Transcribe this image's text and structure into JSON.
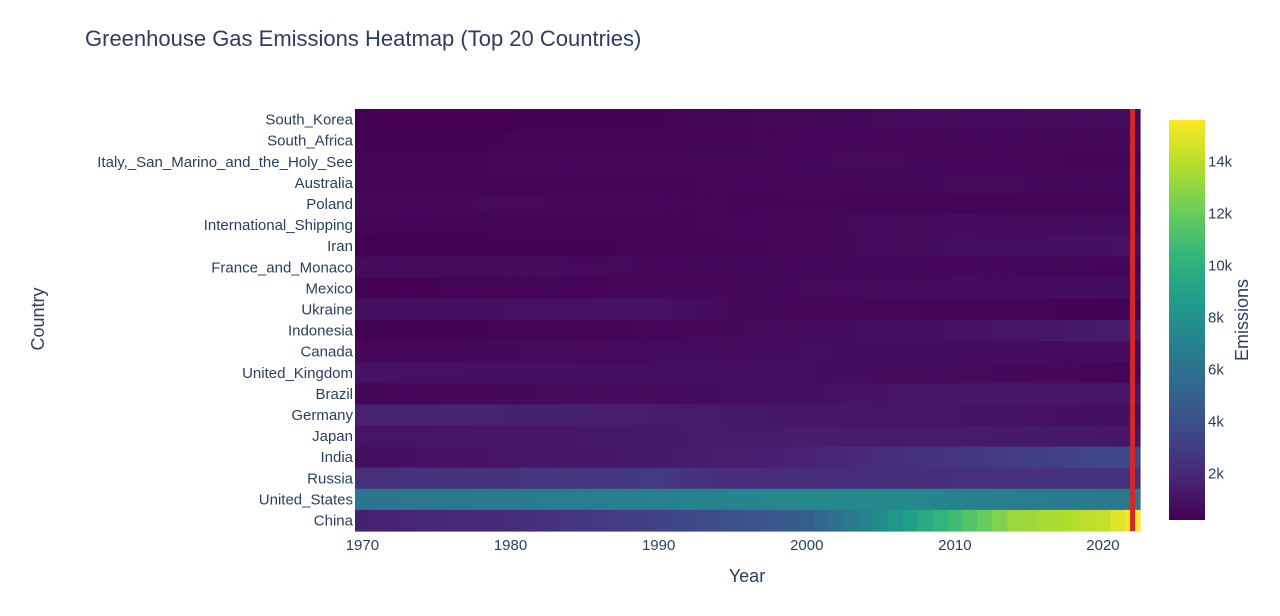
{
  "chart_data": {
    "type": "heatmap",
    "title": "Greenhouse Gas Emissions Heatmap (Top 20 Countries)",
    "xlabel": "Year",
    "ylabel": "Country",
    "colorbar_title": "Emissions",
    "colorscale": "Viridis",
    "colorscale_stops": [
      "#440154",
      "#482878",
      "#3e4989",
      "#31688e",
      "#26828e",
      "#1f9e89",
      "#35b779",
      "#6ece58",
      "#b5de2b",
      "#fde725"
    ],
    "zrange": [
      200,
      15600
    ],
    "colorbar_ticks": [
      {
        "value": 2000,
        "label": "2k"
      },
      {
        "value": 4000,
        "label": "4k"
      },
      {
        "value": 6000,
        "label": "6k"
      },
      {
        "value": 8000,
        "label": "8k"
      },
      {
        "value": 10000,
        "label": "10k"
      },
      {
        "value": 12000,
        "label": "12k"
      },
      {
        "value": 14000,
        "label": "14k"
      }
    ],
    "x_ticks": [
      1970,
      1980,
      1990,
      2000,
      2010,
      2020
    ],
    "xrange": [
      1969.5,
      2022.5
    ],
    "highlight_year": 2022,
    "highlight_color": "#d62728",
    "years_start": 1970,
    "years_end": 2022,
    "countries": [
      {
        "name": "South_Korea",
        "values": [
          [
            1970,
            140
          ],
          [
            1990,
            300
          ],
          [
            2000,
            520
          ],
          [
            2010,
            650
          ],
          [
            2022,
            680
          ]
        ]
      },
      {
        "name": "South_Africa",
        "values": [
          [
            1970,
            250
          ],
          [
            1990,
            400
          ],
          [
            2000,
            460
          ],
          [
            2010,
            520
          ],
          [
            2022,
            490
          ]
        ]
      },
      {
        "name": "Italy,_San_Marino_and_the_Holy_See",
        "values": [
          [
            1970,
            380
          ],
          [
            1990,
            520
          ],
          [
            2005,
            590
          ],
          [
            2015,
            450
          ],
          [
            2022,
            420
          ]
        ]
      },
      {
        "name": "Australia",
        "values": [
          [
            1970,
            320
          ],
          [
            1990,
            420
          ],
          [
            2000,
            500
          ],
          [
            2010,
            580
          ],
          [
            2022,
            560
          ]
        ]
      },
      {
        "name": "Poland",
        "values": [
          [
            1970,
            480
          ],
          [
            1980,
            600
          ],
          [
            1990,
            480
          ],
          [
            2000,
            400
          ],
          [
            2022,
            380
          ]
        ]
      },
      {
        "name": "International_Shipping",
        "values": [
          [
            1970,
            380
          ],
          [
            1990,
            420
          ],
          [
            2000,
            520
          ],
          [
            2010,
            700
          ],
          [
            2022,
            690
          ]
        ]
      },
      {
        "name": "Iran",
        "values": [
          [
            1970,
            220
          ],
          [
            1990,
            330
          ],
          [
            2000,
            480
          ],
          [
            2010,
            750
          ],
          [
            2022,
            900
          ]
        ]
      },
      {
        "name": "France_and_Monaco",
        "values": [
          [
            1970,
            620
          ],
          [
            1980,
            650
          ],
          [
            1990,
            560
          ],
          [
            2005,
            560
          ],
          [
            2022,
            420
          ]
        ]
      },
      {
        "name": "Mexico",
        "values": [
          [
            1970,
            260
          ],
          [
            1990,
            480
          ],
          [
            2000,
            580
          ],
          [
            2010,
            700
          ],
          [
            2022,
            720
          ]
        ]
      },
      {
        "name": "Ukraine",
        "values": [
          [
            1970,
            820
          ],
          [
            1990,
            950
          ],
          [
            1995,
            560
          ],
          [
            2010,
            420
          ],
          [
            2022,
            230
          ]
        ]
      },
      {
        "name": "Indonesia",
        "values": [
          [
            1970,
            210
          ],
          [
            1990,
            460
          ],
          [
            2000,
            650
          ],
          [
            2010,
            900
          ],
          [
            2022,
            1350
          ]
        ]
      },
      {
        "name": "Canada",
        "values": [
          [
            1970,
            520
          ],
          [
            1990,
            620
          ],
          [
            2000,
            750
          ],
          [
            2010,
            740
          ],
          [
            2022,
            700
          ]
        ]
      },
      {
        "name": "United_Kingdom",
        "values": [
          [
            1970,
            950
          ],
          [
            1980,
            850
          ],
          [
            1990,
            820
          ],
          [
            2000,
            760
          ],
          [
            2010,
            620
          ],
          [
            2022,
            420
          ]
        ]
      },
      {
        "name": "Brazil",
        "values": [
          [
            1970,
            420
          ],
          [
            1990,
            680
          ],
          [
            2000,
            850
          ],
          [
            2010,
            1100
          ],
          [
            2022,
            1150
          ]
        ]
      },
      {
        "name": "Germany",
        "values": [
          [
            1970,
            1650
          ],
          [
            1980,
            1600
          ],
          [
            1990,
            1400
          ],
          [
            2000,
            1100
          ],
          [
            2010,
            1000
          ],
          [
            2022,
            780
          ]
        ]
      },
      {
        "name": "Japan",
        "values": [
          [
            1970,
            1000
          ],
          [
            1990,
            1250
          ],
          [
            2000,
            1380
          ],
          [
            2010,
            1300
          ],
          [
            2022,
            1150
          ]
        ]
      },
      {
        "name": "India",
        "values": [
          [
            1970,
            800
          ],
          [
            1990,
            1250
          ],
          [
            2000,
            1650
          ],
          [
            2010,
            2600
          ],
          [
            2022,
            3700
          ]
        ]
      },
      {
        "name": "Russia",
        "values": [
          [
            1970,
            2300
          ],
          [
            1990,
            2800
          ],
          [
            1995,
            2100
          ],
          [
            2010,
            2250
          ],
          [
            2022,
            2500
          ]
        ]
      },
      {
        "name": "United_States",
        "values": [
          [
            1970,
            6200
          ],
          [
            1980,
            6500
          ],
          [
            2000,
            7400
          ],
          [
            2007,
            7400
          ],
          [
            2015,
            6600
          ],
          [
            2022,
            6300
          ]
        ]
      },
      {
        "name": "China",
        "values": [
          [
            1970,
            1600
          ],
          [
            1980,
            2100
          ],
          [
            1990,
            3300
          ],
          [
            2000,
            4800
          ],
          [
            2005,
            7600
          ],
          [
            2010,
            10800
          ],
          [
            2014,
            13200
          ],
          [
            2020,
            14200
          ],
          [
            2022,
            15600
          ]
        ]
      }
    ]
  }
}
